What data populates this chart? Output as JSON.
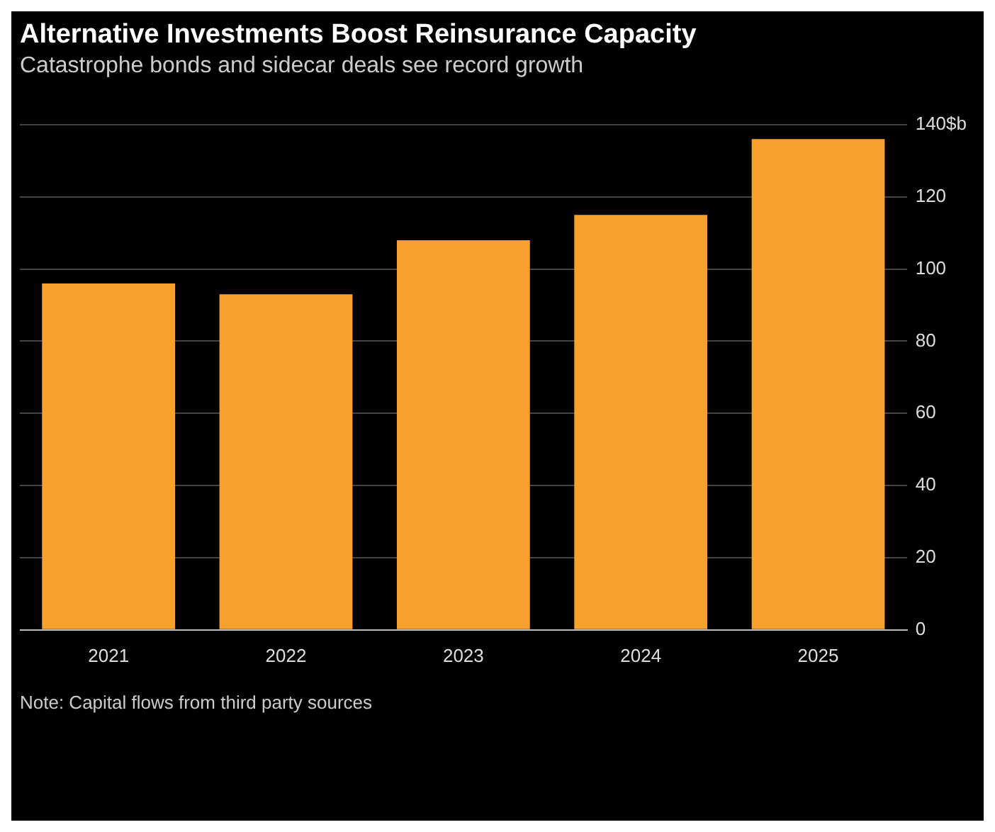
{
  "chart_data": {
    "type": "bar",
    "title": "Alternative Investments Boost Reinsurance Capacity",
    "subtitle": "Catastrophe bonds and sidecar deals see record growth",
    "categories": [
      "2021",
      "2022",
      "2023",
      "2024",
      "2025"
    ],
    "values": [
      96,
      93,
      108,
      115,
      136
    ],
    "color": "#f7a02d",
    "ylim": [
      0,
      140
    ],
    "yticks": [
      0,
      20,
      40,
      60,
      80,
      100,
      120,
      {
        "value": 140,
        "label": "140$b"
      }
    ],
    "grid": "y",
    "annotations": [
      "Note: Capital flows from third party sources"
    ]
  }
}
